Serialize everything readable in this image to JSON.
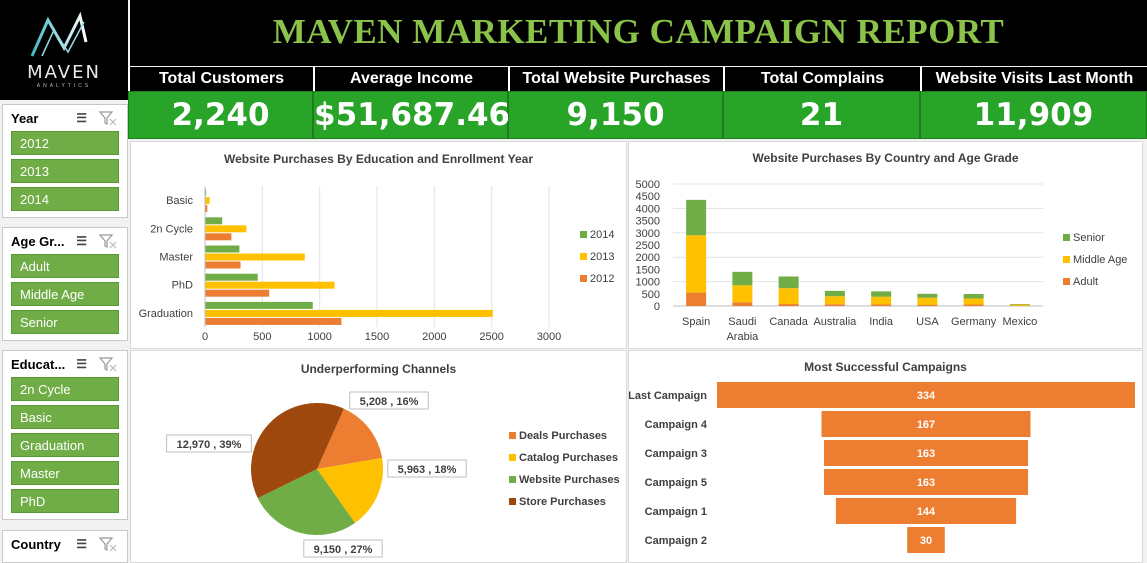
{
  "title": "MAVEN MARKETING CAMPAIGN REPORT",
  "logo": {
    "name": "MAVEN",
    "sub": "ANALYTICS"
  },
  "kpis": [
    {
      "label": "Total Customers",
      "value": "2,240"
    },
    {
      "label": "Average Income",
      "value": "$51,687.46"
    },
    {
      "label": "Total Website Purchases",
      "value": "9,150"
    },
    {
      "label": "Total Complains",
      "value": "21"
    },
    {
      "label": "Website Visits Last Month",
      "value": "11,909"
    }
  ],
  "slicers": [
    {
      "title": "Year",
      "items": [
        "2012",
        "2013",
        "2014"
      ]
    },
    {
      "title": "Age Gr...",
      "items": [
        "Adult",
        "Middle Age",
        "Senior"
      ]
    },
    {
      "title": "Educat...",
      "items": [
        "2n Cycle",
        "Basic",
        "Graduation",
        "Master",
        "PhD"
      ]
    },
    {
      "title": "Country",
      "items": []
    }
  ],
  "colors": {
    "green": "#70ad47",
    "yellow": "#ffc000",
    "orange": "#ed7d31",
    "brown": "#9e480e",
    "kpi_green": "#28a428",
    "title_green": "#8bc34a"
  },
  "chart_data": [
    {
      "type": "bar",
      "orientation": "horizontal",
      "title": "Website Purchases By Education and Enrollment Year",
      "categories": [
        "Basic",
        "2n Cycle",
        "Master",
        "PhD",
        "Graduation"
      ],
      "xticks": [
        "0",
        "500",
        "1000",
        "1500",
        "2000",
        "2500",
        "3000"
      ],
      "xlim": [
        0,
        3000
      ],
      "series": [
        {
          "name": "2014",
          "color": "#70ad47",
          "values": [
            10,
            150,
            300,
            460,
            940
          ]
        },
        {
          "name": "2013",
          "color": "#ffc000",
          "values": [
            40,
            360,
            870,
            1130,
            2510
          ]
        },
        {
          "name": "2012",
          "color": "#ed7d31",
          "values": [
            20,
            230,
            310,
            560,
            1190
          ]
        }
      ],
      "legend": "right"
    },
    {
      "type": "bar",
      "stacked": true,
      "title": "Website Purchases By Country and Age Grade",
      "categories": [
        "Spain",
        "Saudi Arabia",
        "Canada",
        "Australia",
        "India",
        "USA",
        "Germany",
        "Mexico"
      ],
      "category_lines": [
        [
          "Spain"
        ],
        [
          "Saudi",
          "Arabia"
        ],
        [
          "Canada"
        ],
        [
          "Australia"
        ],
        [
          "India"
        ],
        [
          "USA"
        ],
        [
          "Germany"
        ],
        [
          "Mexico"
        ]
      ],
      "yticks": [
        "0",
        "500",
        "1000",
        "1500",
        "2000",
        "2500",
        "3000",
        "3500",
        "4000",
        "4500",
        "5000"
      ],
      "ylim": [
        0,
        5000
      ],
      "series": [
        {
          "name": "Adult",
          "color": "#ed7d31",
          "values": [
            550,
            150,
            80,
            70,
            60,
            40,
            60,
            10
          ]
        },
        {
          "name": "Middle Age",
          "color": "#ffc000",
          "values": [
            2350,
            700,
            650,
            330,
            320,
            300,
            250,
            50
          ]
        },
        {
          "name": "Senior",
          "color": "#70ad47",
          "values": [
            1450,
            550,
            480,
            220,
            220,
            160,
            180,
            20
          ]
        }
      ],
      "legend_order": [
        "Senior",
        "Middle Age",
        "Adult"
      ],
      "legend": "right"
    },
    {
      "type": "pie",
      "title": "Underperforming Channels",
      "slices": [
        {
          "name": "Deals Purchases",
          "value": 5208,
          "label": "5,208 , 16%",
          "color": "#ed7d31"
        },
        {
          "name": "Catalog Purchases",
          "value": 5963,
          "label": "5,963 , 18%",
          "color": "#ffc000"
        },
        {
          "name": "Website Purchases",
          "value": 9150,
          "label": "9,150 , 27%",
          "color": "#70ad47"
        },
        {
          "name": "Store Purchases",
          "value": 12970,
          "label": "12,970 , 39%",
          "color": "#9e480e"
        }
      ],
      "legend": "right"
    },
    {
      "type": "bar",
      "orientation": "horizontal",
      "title": "Most Successful Campaigns",
      "categories": [
        "Last Campaign",
        "Campaign 4",
        "Campaign 3",
        "Campaign 5",
        "Campaign 1",
        "Campaign 2"
      ],
      "values": [
        334,
        167,
        163,
        163,
        144,
        30
      ],
      "labels": [
        "334",
        "167",
        "163",
        "163",
        "144",
        "30"
      ],
      "color": "#ed7d31"
    }
  ]
}
